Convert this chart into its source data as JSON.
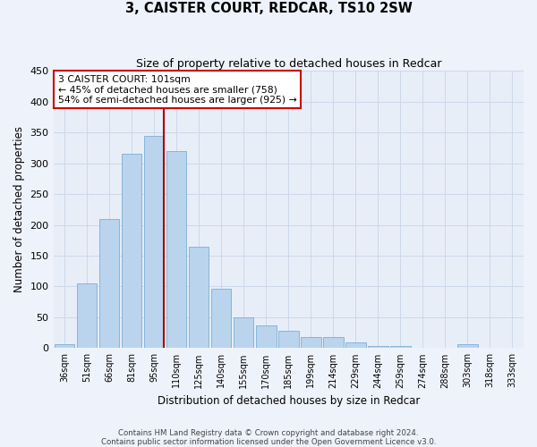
{
  "title": "3, CAISTER COURT, REDCAR, TS10 2SW",
  "subtitle": "Size of property relative to detached houses in Redcar",
  "xlabel": "Distribution of detached houses by size in Redcar",
  "ylabel": "Number of detached properties",
  "bar_labels": [
    "36sqm",
    "51sqm",
    "66sqm",
    "81sqm",
    "95sqm",
    "110sqm",
    "125sqm",
    "140sqm",
    "155sqm",
    "170sqm",
    "185sqm",
    "199sqm",
    "214sqm",
    "229sqm",
    "244sqm",
    "259sqm",
    "274sqm",
    "288sqm",
    "303sqm",
    "318sqm",
    "333sqm"
  ],
  "bar_values": [
    7,
    105,
    210,
    315,
    345,
    320,
    165,
    97,
    50,
    37,
    28,
    18,
    18,
    9,
    3,
    3,
    0,
    0,
    7,
    0,
    0
  ],
  "bar_color": "#bad4ee",
  "bar_edgecolor": "#7aaed4",
  "vline_color": "#aa0000",
  "vline_x_idx": 4.43,
  "annotation_title": "3 CAISTER COURT: 101sqm",
  "annotation_line1": "← 45% of detached houses are smaller (758)",
  "annotation_line2": "54% of semi-detached houses are larger (925) →",
  "annotation_box_facecolor": "#ffffff",
  "annotation_box_edgecolor": "#cc0000",
  "ylim": [
    0,
    450
  ],
  "yticks": [
    0,
    50,
    100,
    150,
    200,
    250,
    300,
    350,
    400,
    450
  ],
  "grid_color": "#ccd8ea",
  "background_color": "#e8eef8",
  "fig_facecolor": "#eef2fa",
  "footer_line1": "Contains HM Land Registry data © Crown copyright and database right 2024.",
  "footer_line2": "Contains public sector information licensed under the Open Government Licence v3.0."
}
